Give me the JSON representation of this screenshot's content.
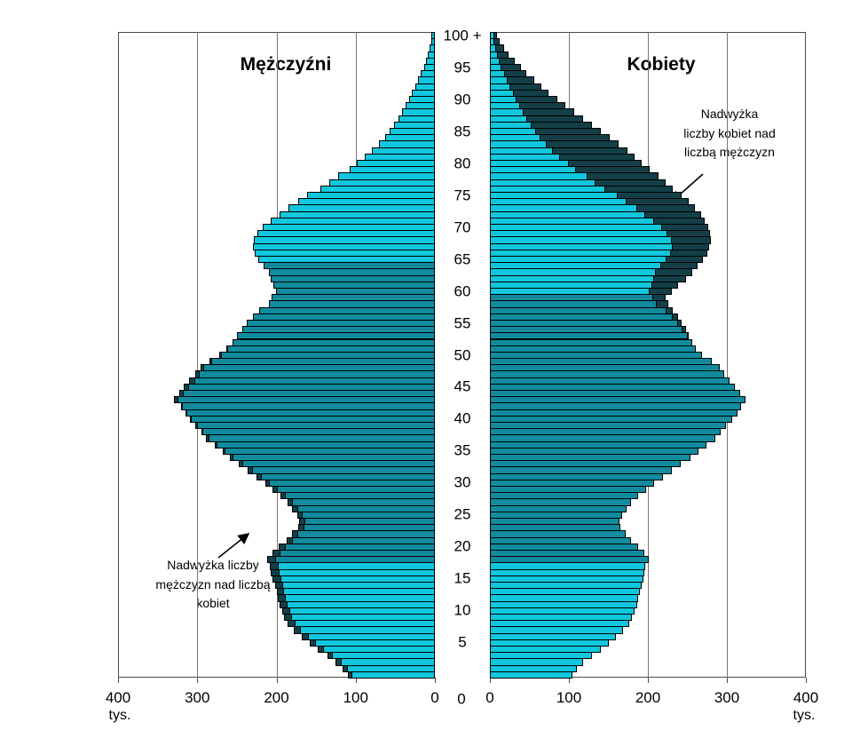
{
  "chart_data": {
    "type": "bar",
    "subtype": "population-pyramid",
    "title_left": "Mężczyźni",
    "title_right": "Kobiety",
    "unit_label": "tys.",
    "x_axis": {
      "max": 400,
      "ticks_left": [
        "400",
        "300",
        "200",
        "100",
        "0"
      ],
      "ticks_right": [
        "0",
        "100",
        "200",
        "300",
        "400"
      ]
    },
    "age_axis": {
      "tick_values": [
        100,
        95,
        90,
        85,
        80,
        75,
        70,
        65,
        60,
        55,
        50,
        45,
        40,
        35,
        30,
        25,
        20,
        15,
        10,
        5
      ],
      "tick_labels": [
        "100 +",
        "95",
        "90",
        "85",
        "80",
        "75",
        "70",
        "65",
        "60",
        "55",
        "50",
        "45",
        "40",
        "35",
        "30",
        "25",
        "20",
        "15",
        "10",
        "5"
      ],
      "origin_label": "0"
    },
    "annotations": {
      "right": {
        "lines": [
          "Nadwyżka",
          "liczby kobiet nad",
          "liczbą mężczyzn"
        ]
      },
      "left": {
        "lines": [
          "Nadwyżka liczby",
          "mężczyzn nad liczbą",
          "kobiet"
        ]
      }
    },
    "colors": {
      "light": "#11c7dd",
      "mid": "#108c9e",
      "surplus_dark": "#133f48",
      "bar_border": "#000000",
      "grid": "#757575",
      "frame": "#4a4a4a"
    },
    "age_groups": {
      "light_max_age": 17,
      "men_light_min_age": 65,
      "women_light_min_age": 60
    },
    "ages_range": [
      0,
      100
    ],
    "series": [
      {
        "name": "men",
        "values": [
          110,
          116,
          125,
          136,
          148,
          158,
          168,
          178,
          186,
          190,
          193,
          196,
          198,
          200,
          202,
          205,
          207,
          208,
          212,
          205,
          197,
          187,
          180,
          172,
          171,
          174,
          180,
          186,
          195,
          205,
          214,
          225,
          236,
          248,
          259,
          268,
          278,
          289,
          295,
          302,
          309,
          315,
          321,
          329,
          323,
          317,
          310,
          303,
          296,
          285,
          272,
          263,
          256,
          250,
          243,
          237,
          230,
          222,
          210,
          206,
          201,
          204,
          207,
          209,
          216,
          223,
          228,
          230,
          229,
          224,
          217,
          207,
          196,
          185,
          172,
          161,
          145,
          133,
          122,
          108,
          99,
          88,
          79,
          71,
          63,
          57,
          52,
          46,
          42,
          37,
          33,
          29,
          25,
          21,
          18,
          14,
          11,
          9,
          7,
          5,
          4
        ]
      },
      {
        "name": "women",
        "values": [
          104,
          110,
          118,
          129,
          140,
          150,
          159,
          169,
          176,
          180,
          183,
          186,
          188,
          190,
          192,
          194,
          196,
          197,
          201,
          195,
          188,
          179,
          172,
          165,
          164,
          167,
          173,
          179,
          188,
          198,
          208,
          219,
          230,
          242,
          254,
          264,
          274,
          285,
          292,
          299,
          307,
          314,
          318,
          324,
          317,
          310,
          303,
          297,
          291,
          281,
          269,
          261,
          256,
          252,
          248,
          243,
          238,
          232,
          226,
          222,
          230,
          238,
          248,
          256,
          263,
          270,
          275,
          278,
          280,
          279,
          276,
          272,
          267,
          260,
          252,
          243,
          231,
          222,
          213,
          202,
          192,
          183,
          174,
          163,
          152,
          140,
          129,
          118,
          107,
          96,
          85,
          74,
          65,
          56,
          46,
          39,
          31,
          24,
          18,
          12,
          9
        ]
      }
    ]
  }
}
